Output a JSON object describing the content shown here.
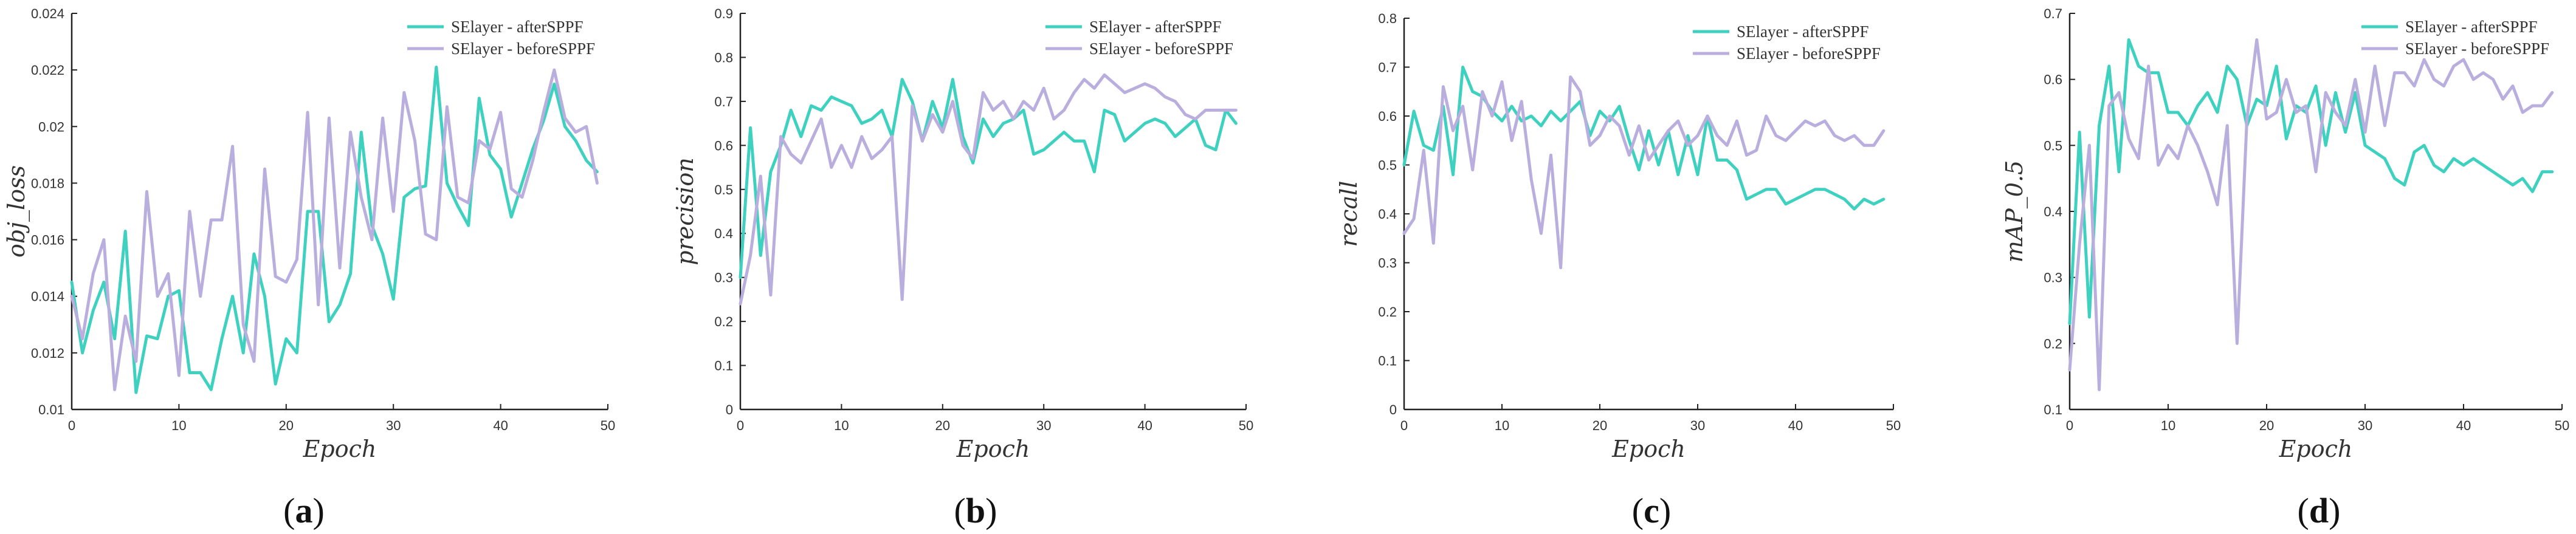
{
  "colors": {
    "after": "#3fd1c0",
    "before": "#b9aedd",
    "axis": "#222222"
  },
  "chart_data": [
    {
      "type": "line",
      "panel_label": "a",
      "xlabel": "Epoch",
      "ylabel": "obj_loss",
      "xlim": [
        0,
        50
      ],
      "ylim": [
        0.01,
        0.024
      ],
      "xticks": [
        0,
        10,
        20,
        30,
        40,
        50
      ],
      "yticks": [
        0.01,
        0.012,
        0.014,
        0.016,
        0.018,
        0.02,
        0.022,
        0.024
      ],
      "grid": false,
      "legend_position": "top-right",
      "series": [
        {
          "name": "SElayer - afterSPPF",
          "color_key": "after",
          "values": [
            0.0145,
            0.012,
            0.0135,
            0.0145,
            0.0125,
            0.0163,
            0.0106,
            0.0126,
            0.0125,
            0.014,
            0.0142,
            0.0113,
            0.0113,
            0.0107,
            0.0125,
            0.014,
            0.012,
            0.0155,
            0.014,
            0.0109,
            0.0125,
            0.012,
            0.017,
            0.017,
            0.0131,
            0.0137,
            0.0148,
            0.0198,
            0.0165,
            0.0155,
            0.0139,
            0.0175,
            0.0178,
            0.0179,
            0.0221,
            0.018,
            0.0172,
            0.0165,
            0.021,
            0.019,
            0.0185,
            0.0168,
            0.018,
            0.0192,
            0.0202,
            0.0215,
            0.02,
            0.0195,
            0.0188,
            0.0184
          ]
        },
        {
          "name": "SElayer - beforeSPPF",
          "color_key": "before",
          "values": [
            0.014,
            0.0125,
            0.0148,
            0.016,
            0.0107,
            0.0133,
            0.0117,
            0.0177,
            0.014,
            0.0148,
            0.0112,
            0.017,
            0.014,
            0.0167,
            0.0167,
            0.0193,
            0.013,
            0.0117,
            0.0185,
            0.0147,
            0.0145,
            0.0153,
            0.0205,
            0.0137,
            0.0203,
            0.015,
            0.0198,
            0.0175,
            0.016,
            0.0203,
            0.017,
            0.0212,
            0.0195,
            0.0162,
            0.016,
            0.0207,
            0.0175,
            0.0173,
            0.0195,
            0.0192,
            0.0205,
            0.0178,
            0.0175,
            0.0188,
            0.0205,
            0.022,
            0.0203,
            0.0198,
            0.02,
            0.018
          ]
        }
      ]
    },
    {
      "type": "line",
      "panel_label": "b",
      "xlabel": "Epoch",
      "ylabel": "precision",
      "xlim": [
        0,
        50
      ],
      "ylim": [
        0,
        0.9
      ],
      "xticks": [
        0,
        10,
        20,
        30,
        40,
        50
      ],
      "yticks": [
        0,
        0.1,
        0.2,
        0.3,
        0.4,
        0.5,
        0.6,
        0.7,
        0.8,
        0.9
      ],
      "grid": false,
      "legend_position": "top-right",
      "series": [
        {
          "name": "SElayer - afterSPPF",
          "color_key": "after",
          "values": [
            0.3,
            0.64,
            0.35,
            0.54,
            0.6,
            0.68,
            0.62,
            0.69,
            0.68,
            0.71,
            0.7,
            0.69,
            0.65,
            0.66,
            0.68,
            0.62,
            0.75,
            0.7,
            0.61,
            0.7,
            0.64,
            0.75,
            0.62,
            0.56,
            0.66,
            0.62,
            0.65,
            0.66,
            0.68,
            0.58,
            0.59,
            0.61,
            0.63,
            0.61,
            0.61,
            0.54,
            0.68,
            0.67,
            0.61,
            0.63,
            0.65,
            0.66,
            0.65,
            0.62,
            0.64,
            0.66,
            0.6,
            0.59,
            0.68,
            0.65
          ]
        },
        {
          "name": "SElayer - beforeSPPF",
          "color_key": "before",
          "values": [
            0.24,
            0.35,
            0.53,
            0.26,
            0.62,
            0.58,
            0.56,
            0.61,
            0.66,
            0.55,
            0.6,
            0.55,
            0.62,
            0.57,
            0.59,
            0.62,
            0.25,
            0.69,
            0.61,
            0.67,
            0.63,
            0.7,
            0.6,
            0.57,
            0.72,
            0.68,
            0.7,
            0.66,
            0.7,
            0.68,
            0.73,
            0.66,
            0.68,
            0.72,
            0.75,
            0.73,
            0.76,
            0.74,
            0.72,
            0.73,
            0.74,
            0.73,
            0.71,
            0.7,
            0.67,
            0.66,
            0.68,
            0.68,
            0.68,
            0.68
          ]
        }
      ]
    },
    {
      "type": "line",
      "panel_label": "c",
      "xlabel": "Epoch",
      "ylabel": "recall",
      "xlim": [
        0,
        50
      ],
      "ylim": [
        0,
        0.8
      ],
      "xticks": [
        0,
        10,
        20,
        30,
        40,
        50
      ],
      "yticks": [
        0,
        0.1,
        0.2,
        0.3,
        0.4,
        0.5,
        0.6,
        0.7,
        0.8
      ],
      "grid": false,
      "legend_position": "top-right",
      "series": [
        {
          "name": "SElayer - afterSPPF",
          "color_key": "after",
          "values": [
            0.5,
            0.61,
            0.54,
            0.53,
            0.62,
            0.48,
            0.7,
            0.65,
            0.64,
            0.61,
            0.59,
            0.62,
            0.59,
            0.6,
            0.58,
            0.61,
            0.59,
            0.61,
            0.63,
            0.56,
            0.61,
            0.59,
            0.62,
            0.55,
            0.49,
            0.57,
            0.5,
            0.57,
            0.48,
            0.56,
            0.48,
            0.6,
            0.51,
            0.51,
            0.49,
            0.43,
            0.44,
            0.45,
            0.45,
            0.42,
            0.43,
            0.44,
            0.45,
            0.45,
            0.44,
            0.43,
            0.41,
            0.43,
            0.42,
            0.43
          ]
        },
        {
          "name": "SElayer - beforeSPPF",
          "color_key": "before",
          "values": [
            0.36,
            0.39,
            0.53,
            0.34,
            0.66,
            0.57,
            0.62,
            0.49,
            0.65,
            0.6,
            0.67,
            0.55,
            0.63,
            0.47,
            0.36,
            0.52,
            0.29,
            0.68,
            0.65,
            0.54,
            0.56,
            0.6,
            0.58,
            0.52,
            0.58,
            0.51,
            0.54,
            0.57,
            0.59,
            0.54,
            0.56,
            0.6,
            0.56,
            0.54,
            0.59,
            0.52,
            0.53,
            0.6,
            0.56,
            0.55,
            0.57,
            0.59,
            0.58,
            0.59,
            0.56,
            0.55,
            0.56,
            0.54,
            0.54,
            0.57
          ]
        }
      ]
    },
    {
      "type": "line",
      "panel_label": "d",
      "xlabel": "Epoch",
      "ylabel": "mAP_0.5",
      "xlim": [
        0,
        50
      ],
      "ylim": [
        0.1,
        0.7
      ],
      "xticks": [
        0,
        10,
        20,
        30,
        40,
        50
      ],
      "yticks": [
        0.1,
        0.2,
        0.3,
        0.4,
        0.5,
        0.6,
        0.7
      ],
      "grid": false,
      "legend_position": "top-right",
      "series": [
        {
          "name": "SElayer - afterSPPF",
          "color_key": "after",
          "values": [
            0.23,
            0.52,
            0.24,
            0.53,
            0.62,
            0.46,
            0.66,
            0.62,
            0.61,
            0.61,
            0.55,
            0.55,
            0.53,
            0.56,
            0.58,
            0.55,
            0.62,
            0.6,
            0.53,
            0.57,
            0.56,
            0.62,
            0.51,
            0.56,
            0.55,
            0.59,
            0.5,
            0.58,
            0.52,
            0.58,
            0.5,
            0.49,
            0.48,
            0.45,
            0.44,
            0.49,
            0.5,
            0.47,
            0.46,
            0.48,
            0.47,
            0.48,
            0.47,
            0.46,
            0.45,
            0.44,
            0.45,
            0.43,
            0.46,
            0.46
          ]
        },
        {
          "name": "SElayer - beforeSPPF",
          "color_key": "before",
          "values": [
            0.16,
            0.35,
            0.5,
            0.13,
            0.56,
            0.58,
            0.51,
            0.48,
            0.62,
            0.47,
            0.5,
            0.48,
            0.53,
            0.5,
            0.46,
            0.41,
            0.53,
            0.2,
            0.54,
            0.66,
            0.54,
            0.55,
            0.6,
            0.55,
            0.56,
            0.46,
            0.58,
            0.55,
            0.53,
            0.6,
            0.52,
            0.62,
            0.53,
            0.61,
            0.61,
            0.59,
            0.63,
            0.6,
            0.59,
            0.62,
            0.63,
            0.6,
            0.61,
            0.6,
            0.57,
            0.59,
            0.55,
            0.56,
            0.56,
            0.58
          ]
        }
      ]
    }
  ]
}
